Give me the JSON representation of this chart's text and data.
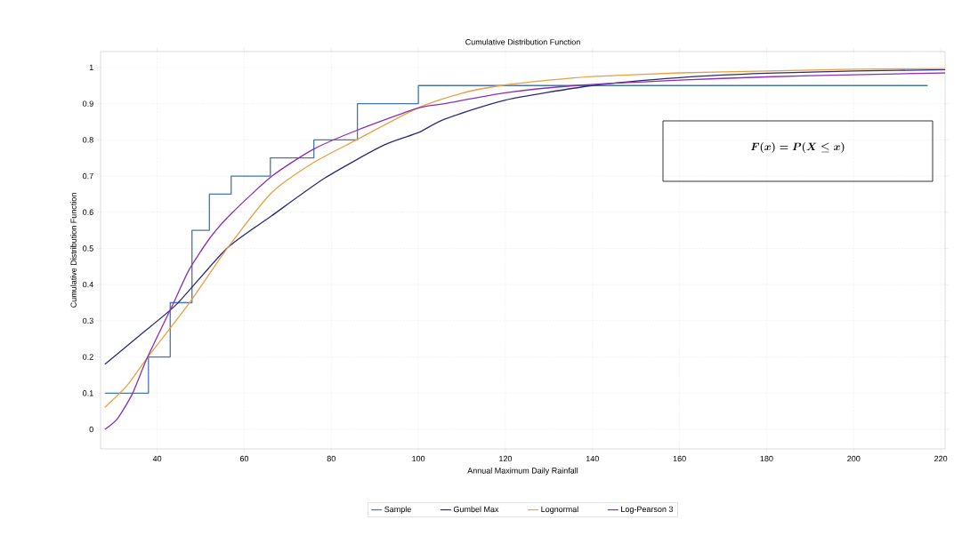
{
  "chart_data": {
    "type": "line",
    "title": "Cumulative Distribution Function",
    "xlabel": "Annual Maximum Daily Rainfall",
    "ylabel": "Cumulative Distribution Function",
    "xlim": [
      27,
      221
    ],
    "xticks": [
      40,
      60,
      80,
      100,
      120,
      140,
      160,
      180,
      200,
      220
    ],
    "ylim": [
      -0.054,
      1.044
    ],
    "yticks": [
      0,
      0.1,
      0.2,
      0.3,
      0.4,
      0.5,
      0.6,
      0.7,
      0.8,
      0.9,
      1
    ],
    "grid": true,
    "legend": "bottom",
    "annotations": [
      "F(x) = P(X \\le x)"
    ],
    "series": [
      {
        "name": "Sample",
        "type": "step",
        "color": "#4a76a8",
        "x": [
          28,
          38,
          43,
          48,
          52,
          57,
          66,
          76,
          86,
          100,
          217
        ],
        "values": [
          0.1,
          0.2,
          0.35,
          0.55,
          0.65,
          0.7,
          0.75,
          0.8,
          0.9,
          0.95,
          0.95
        ]
      },
      {
        "name": "Gumbel Max",
        "color": "#2b2a7a",
        "x": [
          28,
          36,
          44.5,
          56,
          66.3,
          78.6,
          92,
          100,
          106,
          120,
          140,
          160,
          180,
          200,
          221
        ],
        "values": [
          0.18,
          0.26,
          0.346,
          0.5,
          0.59,
          0.695,
          0.785,
          0.82,
          0.857,
          0.91,
          0.95,
          0.972,
          0.984,
          0.99,
          0.994
        ]
      },
      {
        "name": "Lognormal",
        "color": "#e8a040",
        "x": [
          28,
          33,
          37.7,
          47.2,
          56.1,
          66.3,
          75.9,
          85.8,
          99.7,
          110,
          119,
          130,
          140,
          160,
          180,
          200,
          221
        ],
        "values": [
          0.061,
          0.12,
          0.197,
          0.346,
          0.5,
          0.654,
          0.737,
          0.8,
          0.887,
          0.929,
          0.95,
          0.965,
          0.975,
          0.985,
          0.99,
          0.995,
          0.997
        ]
      },
      {
        "name": "Log-Pearson 3",
        "color": "#8a2fb8",
        "x": [
          28,
          30.9,
          34.3,
          37.7,
          43.8,
          47.3,
          52.2,
          57.1,
          66.4,
          75.9,
          85.8,
          99.7,
          106,
          120,
          136,
          160,
          180,
          200,
          221
        ],
        "values": [
          0.0,
          0.03,
          0.098,
          0.197,
          0.35,
          0.44,
          0.53,
          0.597,
          0.7,
          0.774,
          0.826,
          0.887,
          0.9,
          0.93,
          0.95,
          0.965,
          0.974,
          0.98,
          0.985
        ]
      }
    ]
  }
}
